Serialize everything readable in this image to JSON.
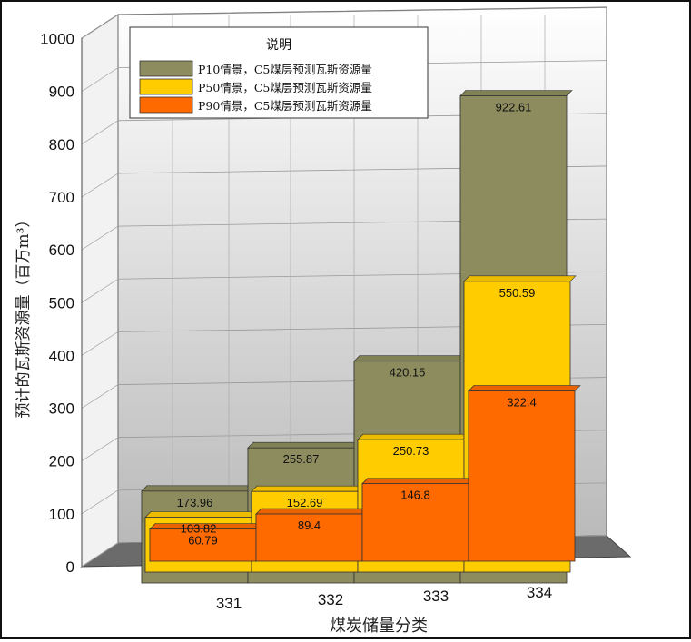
{
  "chart_data": {
    "type": "bar",
    "subtype": "stacked-3d-step",
    "categories": [
      "331",
      "332",
      "333",
      "334"
    ],
    "series": [
      {
        "name": "P90情景，C5煤层预测瓦斯资源量",
        "values": [
          60.79,
          89.4,
          146.8,
          322.4
        ],
        "color": "#ff6a00"
      },
      {
        "name": "P50情景，C5煤层预测瓦斯资源量",
        "values": [
          103.82,
          152.69,
          250.73,
          550.59
        ],
        "color": "#ffcc00"
      },
      {
        "name": "P10情景，C5煤层预测瓦斯资源量",
        "values": [
          173.96,
          255.87,
          420.15,
          922.61
        ],
        "color": "#8c8c5e"
      }
    ],
    "xlabel": "煤炭储量分类",
    "ylabel": "预计的瓦斯资源量（百万m³）",
    "ylim": [
      0,
      1000
    ],
    "yticks": [
      "0",
      "100",
      "200",
      "300",
      "400",
      "500",
      "600",
      "700",
      "800",
      "900",
      "1000"
    ],
    "legend": {
      "title": "说明",
      "placement": "top-left"
    },
    "grid": true
  }
}
